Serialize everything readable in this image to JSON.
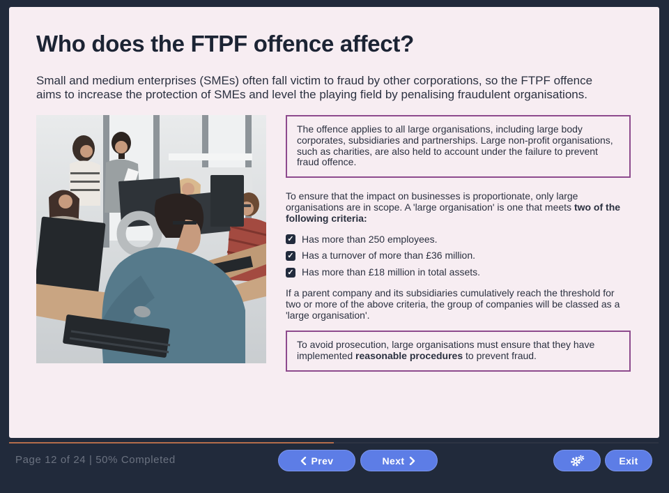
{
  "slide": {
    "title": "Who does the FTPF offence affect?",
    "intro": "Small and medium enterprises (SMEs) often fall victim to fraud by other corporations, so the FTPF offence aims to increase the protection of SMEs and level the playing field by penalising fraudulent organisations.",
    "callout_scope": "The offence applies to all large organisations, including large body corporates, subsidiaries and partnerships. Large non-profit organisations, such as charities, are also held to account under the failure to prevent fraud offence.",
    "criteria_intro_plain": "To ensure that the impact on businesses is proportionate, only large organisations are in scope. A 'large organisation' is one that meets ",
    "criteria_intro_bold": "two of the following criteria",
    "criteria_intro_end": ":",
    "criteria": [
      "Has more than 250 employees.",
      "Has a turnover of more than £36 million.",
      "Has more than £18 million in total assets."
    ],
    "checkbox_glyph": "✓",
    "parent_note": "If a parent company and its subsidiaries cumulatively reach the threshold for two or more of the above criteria, the group of companies will be classed as a 'large organisation'.",
    "callout_procedures_plain1": "To avoid prosecution, large organisations must ensure that they have implemented ",
    "callout_procedures_bold": "reasonable procedures",
    "callout_procedures_plain2": " to prevent fraud.",
    "image_alt": "office-workers-photo"
  },
  "footer": {
    "page_status": "Page 12 of 24 | 50% Completed",
    "progress_percent": 50,
    "prev_label": "Prev",
    "next_label": "Next",
    "exit_label": "Exit"
  },
  "colors": {
    "frame_navy": "#212a3b",
    "card_pink": "#f7edf2",
    "callout_border_purple": "#8d4a8d",
    "button_blue": "#5d7de6",
    "progress_orange": "#b46d4b",
    "checkbox_navy": "#222b3d"
  }
}
